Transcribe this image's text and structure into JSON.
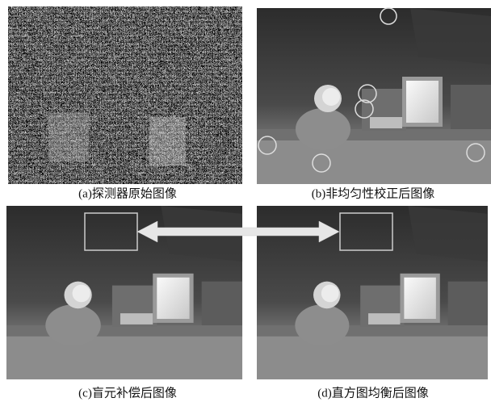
{
  "panels": [
    {
      "caption": "(a)探测器原始图像"
    },
    {
      "caption": "(b)非均匀性校正后图像"
    },
    {
      "caption": "(c)盲元补偿后图像"
    },
    {
      "caption": "(d)直方图均衡后图像"
    }
  ]
}
